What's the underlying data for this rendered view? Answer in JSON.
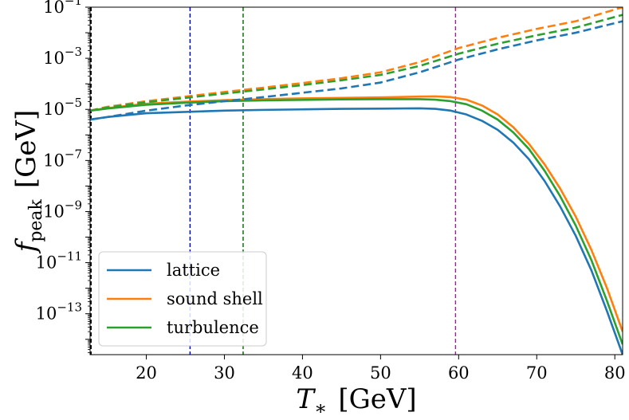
{
  "chart_data": {
    "type": "line",
    "title": "",
    "xlabel": {
      "symbol": "T",
      "subscript": "∗",
      "unit": "[GeV]"
    },
    "ylabel": {
      "symbol": "f",
      "subscript": "peak",
      "unit": "[GeV]"
    },
    "xlim": [
      12.8,
      81
    ],
    "ylim_log10": [
      -14.6,
      -1
    ],
    "yscale": "log",
    "x_ticks": [
      20,
      30,
      40,
      50,
      60,
      70,
      80
    ],
    "y_ticks_log10": [
      -13,
      -11,
      -9,
      -7,
      -5,
      -3,
      -1
    ],
    "y_tick_base": "10",
    "legend": {
      "position": "bottom-left",
      "entries": [
        "lattice",
        "sound shell",
        "turbulence"
      ]
    },
    "vertical_lines": [
      {
        "x": 12.9,
        "color": "#000000",
        "style": "dashed"
      },
      {
        "x": 25.6,
        "color": "#0000cc",
        "style": "dashed"
      },
      {
        "x": 32.4,
        "color": "#006400",
        "style": "dashed"
      },
      {
        "x": 59.6,
        "color": "#cc00cc",
        "style": "dashed"
      }
    ],
    "series": [
      {
        "name": "lattice",
        "style": "solid",
        "color": "#1f77b4",
        "x": [
          12.8,
          15,
          20,
          25,
          30,
          35,
          40,
          45,
          50,
          55,
          57,
          59,
          61,
          63,
          65,
          67,
          69,
          71,
          73,
          75,
          77,
          79,
          81
        ],
        "y_log10": [
          -5.4,
          -5.3,
          -5.15,
          -5.1,
          -5.05,
          -5.02,
          -5.0,
          -4.98,
          -4.97,
          -4.96,
          -4.98,
          -5.05,
          -5.2,
          -5.45,
          -5.8,
          -6.3,
          -6.95,
          -7.8,
          -8.8,
          -9.95,
          -11.3,
          -12.9,
          -14.6
        ]
      },
      {
        "name": "sound shell",
        "style": "solid",
        "color": "#ff7f0e",
        "x": [
          12.8,
          15,
          20,
          25,
          30,
          35,
          40,
          45,
          50,
          55,
          57,
          59,
          61,
          63,
          65,
          67,
          69,
          71,
          73,
          75,
          77,
          79,
          81
        ],
        "y_log10": [
          -5.05,
          -4.95,
          -4.78,
          -4.7,
          -4.64,
          -4.6,
          -4.57,
          -4.55,
          -4.53,
          -4.5,
          -4.49,
          -4.52,
          -4.62,
          -4.85,
          -5.2,
          -5.7,
          -6.35,
          -7.15,
          -8.1,
          -9.2,
          -10.5,
          -12.0,
          -13.7
        ]
      },
      {
        "name": "turbulence",
        "style": "solid",
        "color": "#2ca02c",
        "x": [
          12.8,
          15,
          20,
          25,
          30,
          35,
          40,
          45,
          50,
          55,
          57,
          59,
          61,
          63,
          65,
          67,
          69,
          71,
          73,
          75,
          77,
          79,
          81
        ],
        "y_log10": [
          -5.05,
          -4.97,
          -4.82,
          -4.74,
          -4.68,
          -4.65,
          -4.63,
          -4.61,
          -4.6,
          -4.6,
          -4.62,
          -4.68,
          -4.8,
          -5.05,
          -5.4,
          -5.9,
          -6.55,
          -7.4,
          -8.4,
          -9.55,
          -10.9,
          -12.5,
          -14.2
        ]
      },
      {
        "name": "lattice (dashed)",
        "style": "dashed",
        "color": "#1f77b4",
        "x": [
          12.8,
          15,
          20,
          25,
          30,
          35,
          40,
          45,
          50,
          55,
          60,
          65,
          70,
          75,
          81
        ],
        "y_log10": [
          -5.4,
          -5.3,
          -5.05,
          -4.85,
          -4.68,
          -4.52,
          -4.35,
          -4.18,
          -3.95,
          -3.55,
          -3.05,
          -2.65,
          -2.3,
          -2.0,
          -1.55
        ]
      },
      {
        "name": "sound shell (dashed)",
        "style": "dashed",
        "color": "#ff7f0e",
        "x": [
          12.8,
          15,
          20,
          25,
          30,
          35,
          40,
          45,
          50,
          55,
          60,
          65,
          70,
          75,
          81
        ],
        "y_log10": [
          -5.05,
          -4.9,
          -4.68,
          -4.5,
          -4.32,
          -4.15,
          -3.97,
          -3.78,
          -3.55,
          -3.15,
          -2.6,
          -2.2,
          -1.85,
          -1.55,
          -1.0
        ]
      },
      {
        "name": "turbulence (dashed)",
        "style": "dashed",
        "color": "#2ca02c",
        "x": [
          12.8,
          15,
          20,
          25,
          30,
          35,
          40,
          45,
          50,
          55,
          60,
          65,
          70,
          75,
          81
        ],
        "y_log10": [
          -5.05,
          -4.93,
          -4.72,
          -4.55,
          -4.38,
          -4.22,
          -4.05,
          -3.86,
          -3.65,
          -3.3,
          -2.82,
          -2.43,
          -2.1,
          -1.8,
          -1.3
        ]
      }
    ]
  }
}
